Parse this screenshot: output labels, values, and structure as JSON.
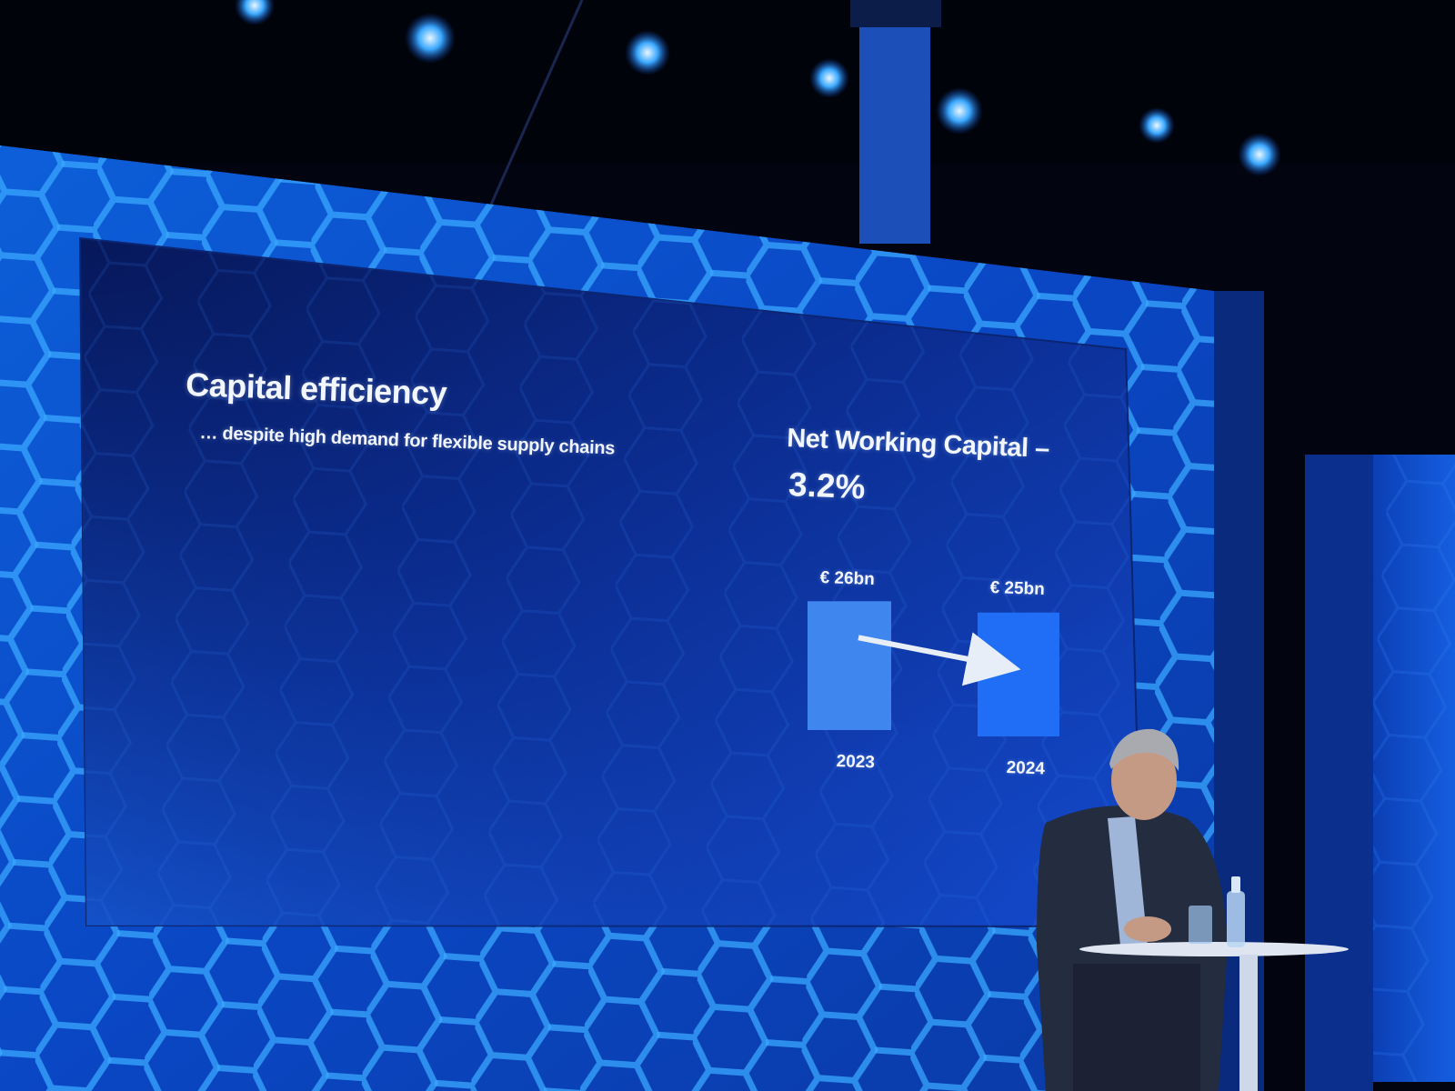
{
  "slide": {
    "title": "Capital efficiency",
    "subtitle": "… despite high demand for flexible supply chains",
    "kpi_title": "Net Working Capital –",
    "kpi_value": "3.2%"
  },
  "chart_data": {
    "type": "bar",
    "title": "",
    "categories": [
      "2023",
      "2024"
    ],
    "values": [
      26,
      25
    ],
    "value_labels": [
      "€ 26bn",
      "€ 25bn"
    ],
    "unit": "€ bn",
    "grid": false,
    "colors": [
      "#3f86ef",
      "#1f6ef5"
    ]
  },
  "colors": {
    "slide_background": "#0b2a8a",
    "stage_backdrop": "#0a5ed8",
    "spotlight": "#3aa8ff"
  }
}
